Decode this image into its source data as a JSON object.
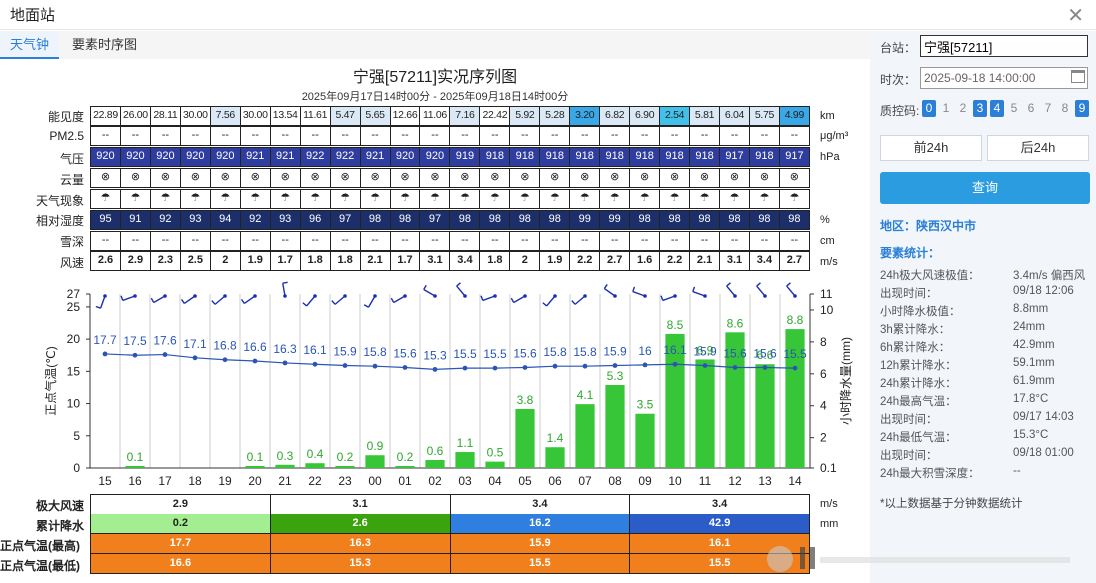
{
  "window": {
    "title": "地面站"
  },
  "tabs": [
    "天气钟",
    "要素时序图"
  ],
  "chart_title": "宁强[57211]实况序列图",
  "chart_subtitle": "2025年09月17日14时00分 - 2025年09月18日14时00分",
  "rows": {
    "vis": {
      "label": "能见度",
      "unit": "km",
      "values": [
        "22.89",
        "26.00",
        "28.11",
        "30.00",
        "7.56",
        "30.00",
        "13.54",
        "11.61",
        "5.47",
        "5.65",
        "12.66",
        "11.06",
        "7.16",
        "22.42",
        "5.92",
        "5.28",
        "3.20",
        "6.82",
        "6.90",
        "2.54",
        "5.81",
        "6.04",
        "5.75",
        "4.99"
      ]
    },
    "pm25": {
      "label": "PM2.5",
      "unit": "μg/m³",
      "values": [
        "--",
        "--",
        "--",
        "--",
        "--",
        "--",
        "--",
        "--",
        "--",
        "--",
        "--",
        "--",
        "--",
        "--",
        "--",
        "--",
        "--",
        "--",
        "--",
        "--",
        "--",
        "--",
        "--",
        "--"
      ]
    },
    "pres": {
      "label": "气压",
      "unit": "hPa",
      "values": [
        "920",
        "920",
        "920",
        "920",
        "920",
        "921",
        "921",
        "922",
        "922",
        "921",
        "920",
        "920",
        "919",
        "918",
        "918",
        "918",
        "918",
        "918",
        "918",
        "918",
        "918",
        "917",
        "918",
        "917"
      ]
    },
    "cloud": {
      "label": "云量",
      "values": [
        "⊗",
        "⊗",
        "⊗",
        "⊗",
        "⊗",
        "⊗",
        "⊗",
        "⊗",
        "⊗",
        "⊗",
        "⊗",
        "⊗",
        "⊗",
        "⊗",
        "⊗",
        "⊗",
        "⊗",
        "⊗",
        "⊗",
        "⊗",
        "⊗",
        "⊗",
        "⊗",
        "⊗"
      ]
    },
    "wx": {
      "label": "天气现象",
      "values": [
        "☂",
        "☂",
        "☂",
        "☂",
        "☂",
        "☂",
        "☂",
        "☂",
        "☂",
        "☂",
        "☂",
        "☂",
        "☂",
        "☂",
        "☂",
        "☂",
        "☂",
        "☂",
        "☂",
        "☂",
        "☂",
        "☂",
        "☂",
        "☂"
      ]
    },
    "rh": {
      "label": "相对湿度",
      "unit": "%",
      "values": [
        "95",
        "91",
        "92",
        "93",
        "94",
        "92",
        "93",
        "96",
        "97",
        "98",
        "98",
        "97",
        "98",
        "98",
        "98",
        "98",
        "99",
        "99",
        "98",
        "98",
        "98",
        "98",
        "98",
        "98"
      ]
    },
    "snow": {
      "label": "雪深",
      "unit": "cm",
      "values": [
        "--",
        "--",
        "--",
        "--",
        "--",
        "--",
        "--",
        "--",
        "--",
        "--",
        "--",
        "--",
        "--",
        "--",
        "--",
        "--",
        "--",
        "--",
        "--",
        "--",
        "--",
        "--",
        "--",
        "--"
      ]
    },
    "wind": {
      "label": "风速",
      "unit": "m/s",
      "values": [
        "2.6",
        "2.9",
        "2.3",
        "2.5",
        "2",
        "1.9",
        "1.7",
        "1.8",
        "1.8",
        "2.1",
        "1.7",
        "3.1",
        "3.4",
        "1.8",
        "2",
        "1.9",
        "2.2",
        "2.7",
        "1.6",
        "2.2",
        "2.1",
        "3.1",
        "3.4",
        "2.7"
      ]
    }
  },
  "colors": {
    "vis": [
      "#ffffff",
      "#ffffff",
      "#ffffff",
      "#ffffff",
      "#dbe9f7",
      "#ffffff",
      "#ffffff",
      "#ffffff",
      "#dbe9f7",
      "#dbe9f7",
      "#ffffff",
      "#ffffff",
      "#dbe9f7",
      "#ffffff",
      "#dbe9f7",
      "#dbe9f7",
      "#3aa7e6",
      "#dbe9f7",
      "#dbe9f7",
      "#41c0ea",
      "#dbe9f7",
      "#dbe9f7",
      "#dbe9f7",
      "#3aa7e6"
    ],
    "pres_bg": "#2e3d9e",
    "rh_bg": "#1d2f6b",
    "bar": "#37c637",
    "line": "#2a55b5",
    "wind_barb": "#1c2fb0"
  },
  "chart_data": {
    "type": "bar",
    "x": [
      "15",
      "16",
      "17",
      "18",
      "19",
      "20",
      "21",
      "22",
      "23",
      "00",
      "01",
      "02",
      "03",
      "04",
      "05",
      "06",
      "07",
      "08",
      "09",
      "10",
      "11",
      "12",
      "13",
      "14"
    ],
    "series": [
      {
        "values": [
          0,
          0.1,
          0,
          0,
          0,
          0.1,
          0.3,
          0.4,
          0.2,
          0.9,
          0.2,
          0.6,
          1.1,
          0.5,
          3.8,
          1.4,
          4.1,
          5.3,
          3.5,
          8.5,
          6.9,
          8.6,
          6.6,
          8.8
        ],
        "labels": [
          "",
          "0.1",
          "",
          "",
          "",
          "0.1",
          "0.3",
          "0.4",
          "0.2",
          "0.9",
          "0.2",
          "0.6",
          "1.1",
          "0.5",
          "3.8",
          "1.4",
          "4.1",
          "5.3",
          "3.5",
          "8.5",
          "6.9",
          "8.6",
          "6.6",
          "8.8"
        ]
      },
      {
        "type": "line",
        "values": [
          17.7,
          17.5,
          17.6,
          17.1,
          16.8,
          16.6,
          16.3,
          16.1,
          15.9,
          15.8,
          15.6,
          15.3,
          15.5,
          15.5,
          15.6,
          15.8,
          15.8,
          15.9,
          16,
          16.1,
          15.9,
          15.6,
          15.6,
          15.5
        ]
      }
    ],
    "wind_dir_deg": [
      200,
      250,
      240,
      235,
      230,
      235,
      350,
      220,
      230,
      210,
      240,
      300,
      320,
      250,
      240,
      220,
      230,
      305,
      290,
      250,
      290,
      320,
      320,
      320
    ],
    "ylabel_left": "正点气温(℃)",
    "ylabel_right": "小时降水量(mm)",
    "y_left_ticks": [
      "0",
      "5",
      "10",
      "15",
      "20",
      "25",
      "27"
    ],
    "y_right_ticks": [
      "0.1",
      "2",
      "4",
      "6",
      "8",
      "10",
      "11"
    ],
    "y_left_range": [
      0,
      27
    ],
    "y_right_range": [
      0.1,
      11
    ],
    "grid": true
  },
  "bottom": {
    "wind_max": {
      "label": "极大风速",
      "unit": "m/s",
      "values": [
        "2.9",
        "3.1",
        "3.4",
        "3.4"
      ]
    },
    "precip": {
      "label": "累计降水",
      "unit": "mm",
      "values": [
        "0.2",
        "2.6",
        "16.2",
        "42.9"
      ],
      "colors": [
        "#a3ee90",
        "#3aa30e",
        "#2f7fe0",
        "#2b5cc8"
      ]
    },
    "tmax": {
      "label": "正点气温(最高)",
      "values": [
        "17.7",
        "16.3",
        "15.9",
        "16.1"
      ]
    },
    "tmin": {
      "label": "正点气温(最低)",
      "values": [
        "16.6",
        "15.3",
        "15.5",
        "15.5"
      ]
    },
    "temp_color": "#f07f1c"
  },
  "side": {
    "station_label": "台站：",
    "station_value": "宁强[57211]",
    "time_label": "时次：",
    "time_value": "2025-09-18 14:00:00",
    "qc_label": "质控码:",
    "qc_codes": [
      "0",
      "1",
      "2",
      "3",
      "4",
      "5",
      "6",
      "7",
      "8",
      "9"
    ],
    "qc_active": [
      0,
      3,
      4,
      9
    ],
    "prev_btn": "前24h",
    "next_btn": "后24h",
    "query_btn": "查询",
    "region": "地区：陕西汉中市",
    "stat_title": "要素统计：",
    "stats": [
      {
        "k": "24h极大风速极值：",
        "v": "3.4m/s 偏西风"
      },
      {
        "k": "出现时间：",
        "v": "09/18 12:06"
      },
      {
        "k": "小时降水极值：",
        "v": "8.8mm"
      },
      {
        "k": "3h累计降水：",
        "v": "24mm"
      },
      {
        "k": "6h累计降水：",
        "v": "42.9mm"
      },
      {
        "k": "12h累计降水：",
        "v": "59.1mm"
      },
      {
        "k": "24h累计降水：",
        "v": "61.9mm"
      },
      {
        "k": "24h最高气温：",
        "v": "17.8°C"
      },
      {
        "k": "出现时间：",
        "v": "09/17 14:03"
      },
      {
        "k": "24h最低气温：",
        "v": "15.3°C"
      },
      {
        "k": "出现时间：",
        "v": "09/18 01:00"
      },
      {
        "k": "24h最大积雪深度：",
        "v": "--"
      }
    ],
    "footnote": "*以上数据基于分钟数据统计"
  }
}
